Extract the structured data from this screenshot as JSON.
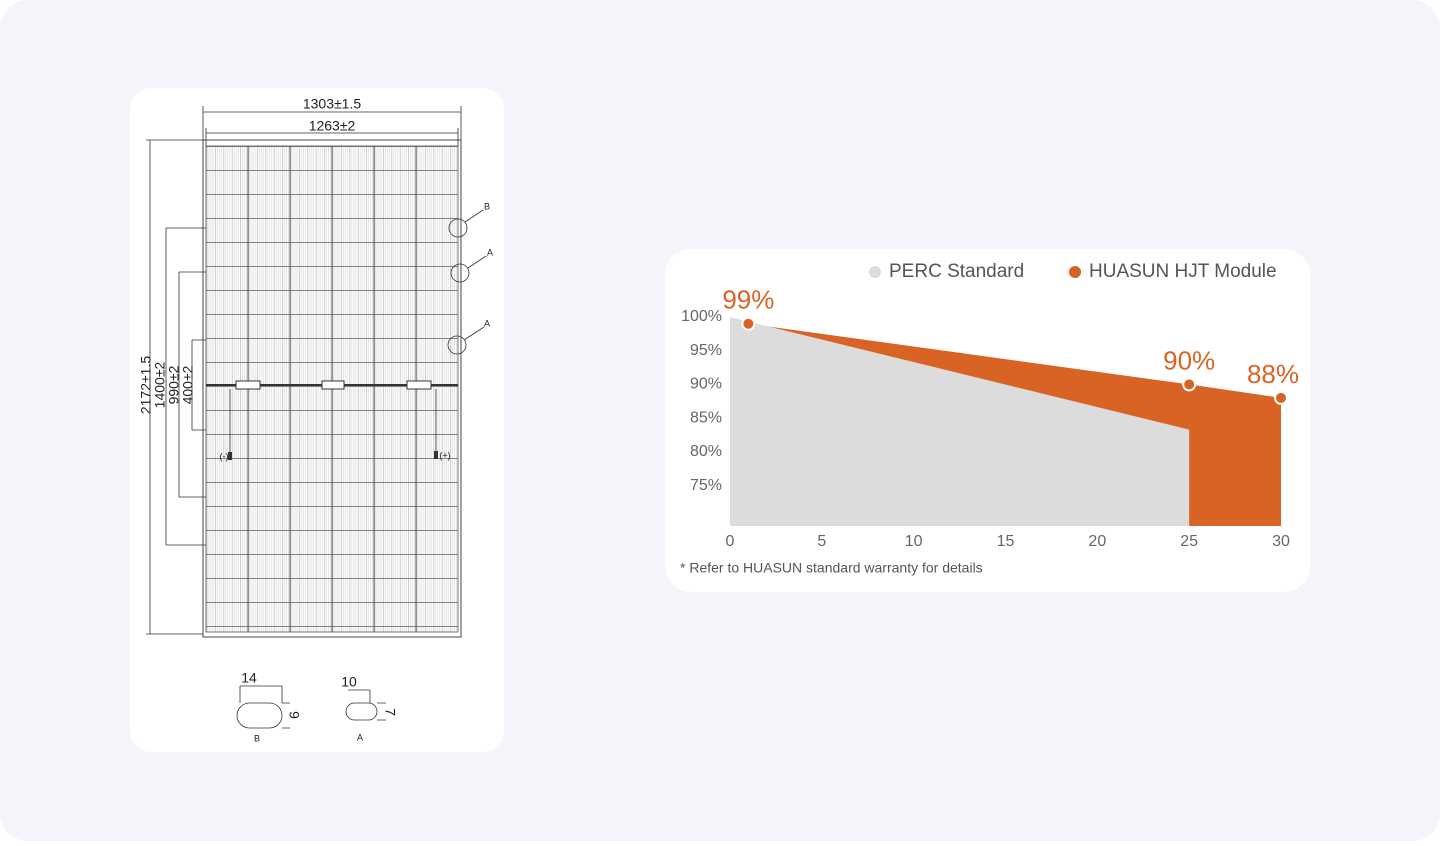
{
  "drawing": {
    "width_outer": "1303±1.5",
    "width_inner": "1263±2",
    "height": "2172±1.5",
    "mount_1": "1400±2",
    "mount_2": "990±2",
    "mount_3": "400±2",
    "callouts": [
      "B",
      "A",
      "A"
    ],
    "terminal_minus": "(-)",
    "terminal_plus": "(+)",
    "details": [
      {
        "name": "B",
        "width": "14",
        "height": "9"
      },
      {
        "name": "A",
        "width": "10",
        "height": "7"
      }
    ]
  },
  "chart_data": {
    "type": "area",
    "legend": "top-right",
    "xlim": [
      0,
      30
    ],
    "xticks": [
      0,
      5,
      10,
      15,
      20,
      25,
      30
    ],
    "ylim": [
      69,
      100
    ],
    "yticks": [
      {
        "value": 100,
        "label": "100%"
      },
      {
        "value": 95,
        "label": "95%"
      },
      {
        "value": 90,
        "label": "90%"
      },
      {
        "value": 85,
        "label": "85%"
      },
      {
        "value": 80,
        "label": "80%"
      },
      {
        "value": 75,
        "label": "75%"
      }
    ],
    "grid": false,
    "series": [
      {
        "name": "PERC Standard",
        "color": "#dcdcdc",
        "x": [
          0,
          25
        ],
        "values": [
          100,
          83.3
        ]
      },
      {
        "name": "HUASUN HJT Module",
        "color": "#d96325",
        "x": [
          1,
          25,
          30
        ],
        "values": [
          99,
          90,
          88
        ],
        "value_labels": [
          "99%",
          "90%",
          "88%"
        ]
      }
    ],
    "footnote": "* Refer to HUASUN standard warranty for details"
  }
}
